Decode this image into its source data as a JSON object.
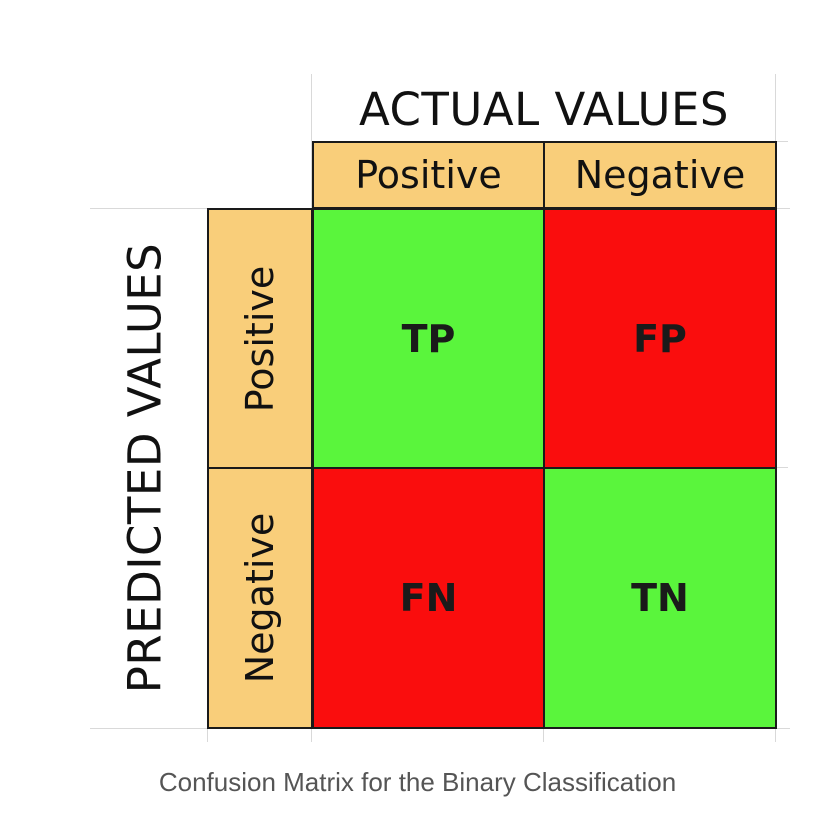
{
  "matrix": {
    "actual_title": "ACTUAL VALUES",
    "predicted_title": "PREDICTED VALUES",
    "actual_headers": [
      "Positive",
      "Negative"
    ],
    "predicted_headers": [
      "Positive",
      "Negative"
    ],
    "cells": {
      "tp": "TP",
      "fp": "FP",
      "fn": "FN",
      "tn": "TN"
    },
    "colors": {
      "header": "#f9ce7a",
      "correct": "#5af53c",
      "incorrect": "#fa0d0d"
    }
  },
  "caption": "Confusion Matrix for the Binary Classification"
}
